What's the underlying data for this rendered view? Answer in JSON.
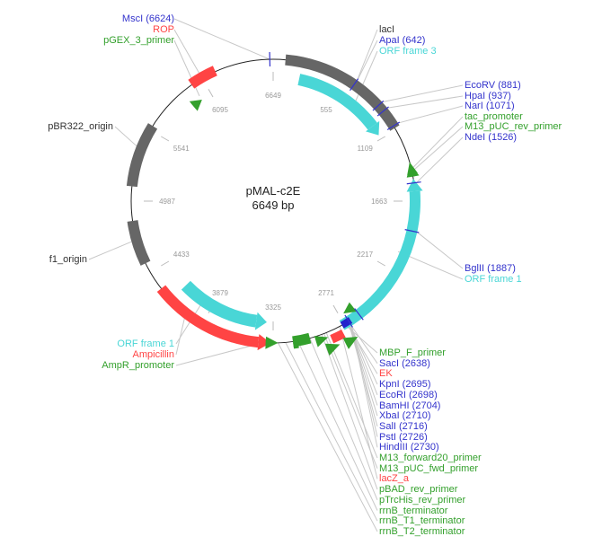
{
  "plasmid": {
    "name": "pMAL-c2E",
    "length": "6649 bp"
  },
  "colors": {
    "enzyme": "#3333cc",
    "primer": "#33a02c",
    "orf": "#49d6d6",
    "gene_red": "#ff4444",
    "origin": "#666666",
    "text_dark": "#333333"
  },
  "ticks": [
    "6649",
    "555",
    "1109",
    "1663",
    "2217",
    "2771",
    "3325",
    "3879",
    "4433",
    "4987",
    "5541",
    "6095"
  ],
  "labels_top_left": [
    "MscI (6624)",
    "ROP",
    "pGEX_3_primer"
  ],
  "labels_top_right": [
    "lacI",
    "ApaI (642)",
    "ORF frame 3"
  ],
  "labels_right_upper": [
    "EcoRV (881)",
    "HpaI (937)",
    "NarI (1071)",
    "tac_promoter",
    "M13_pUC_rev_primer",
    "NdeI (1526)"
  ],
  "labels_right_mid": [
    "BglII (1887)",
    "ORF frame 1"
  ],
  "labels_left": [
    "pBR322_origin",
    "f1_origin"
  ],
  "labels_bottom_left": [
    "ORF frame 1",
    "Ampicillin",
    "AmpR_promoter"
  ],
  "labels_bottom_right": [
    "MBP_F_primer",
    "SacI (2638)",
    "EK",
    "KpnI (2695)",
    "EcoRI (2698)",
    "BamHI (2704)",
    "XbaI (2710)",
    "SalI (2716)",
    "PstI (2726)",
    "HindIII (2730)",
    "M13_forward20_primer",
    "M13_pUC_fwd_primer",
    "lacZ_a",
    "pBAD_rev_primer",
    "pTrcHis_rev_primer",
    "rrnB_terminator",
    "rrnB_T1_terminator",
    "rrnB_T2_terminator"
  ]
}
